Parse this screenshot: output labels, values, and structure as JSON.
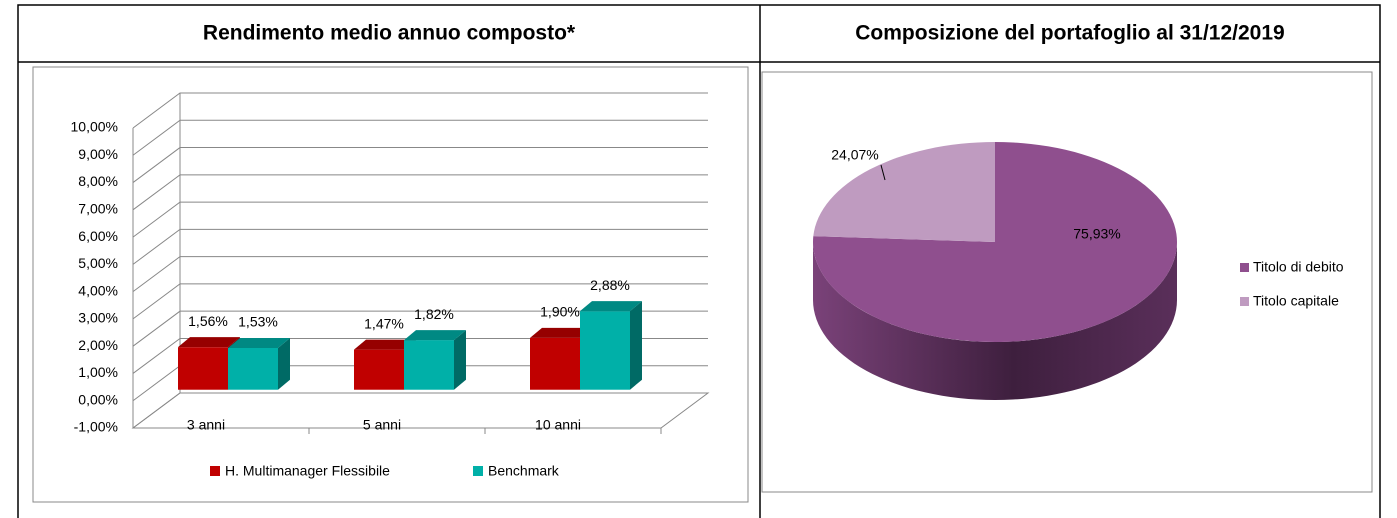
{
  "chart_data": [
    {
      "type": "bar3d",
      "title": "Rendimento medio annuo composto*",
      "categories": [
        "3 anni",
        "5 anni",
        "10 anni"
      ],
      "series": [
        {
          "name": "H. Multimanager Flessibile",
          "color": "#c00000",
          "values": [
            1.56,
            1.47,
            1.9
          ],
          "value_labels": [
            "1,56%",
            "1,47%",
            "1,90%"
          ]
        },
        {
          "name": "Benchmark",
          "color": "#00b0a8",
          "values": [
            1.53,
            1.82,
            2.88
          ],
          "value_labels": [
            "1,53%",
            "1,82%",
            "2,88%"
          ]
        }
      ],
      "ylim": [
        -1,
        10
      ],
      "yticks": [
        {
          "value": -1,
          "label": "-1,00%"
        },
        {
          "value": 0,
          "label": "0,00%"
        },
        {
          "value": 1,
          "label": "1,00%"
        },
        {
          "value": 2,
          "label": "2,00%"
        },
        {
          "value": 3,
          "label": "3,00%"
        },
        {
          "value": 4,
          "label": "4,00%"
        },
        {
          "value": 5,
          "label": "5,00%"
        },
        {
          "value": 6,
          "label": "6,00%"
        },
        {
          "value": 7,
          "label": "7,00%"
        },
        {
          "value": 8,
          "label": "8,00%"
        },
        {
          "value": 9,
          "label": "9,00%"
        },
        {
          "value": 10,
          "label": "10,00%"
        }
      ],
      "grid": true,
      "legend": "bottom"
    },
    {
      "type": "pie3d",
      "title": "Composizione del portafoglio al 31/12/2019",
      "categories": [
        "Titolo di debito",
        "Titolo capitale"
      ],
      "values": [
        75.93,
        24.07
      ],
      "value_labels": [
        "75,93%",
        "24,07%"
      ],
      "colors": [
        "#8f4f8e",
        "#bf9bc0"
      ],
      "legend": "right"
    }
  ]
}
